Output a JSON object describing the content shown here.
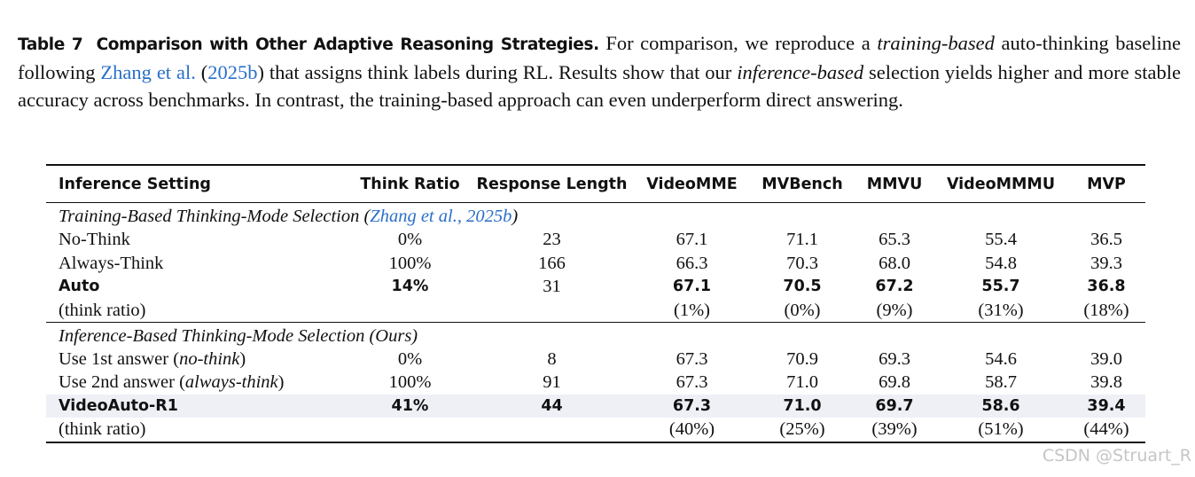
{
  "caption": {
    "label": "Table 7",
    "title": "Comparison with Other Adaptive Reasoning Strategies.",
    "parts": [
      "For comparison, we reproduce a ",
      "training-based",
      " auto-thinking baseline following ",
      "Zhang et al.",
      " (",
      "2025b",
      ") that assigns think labels during RL. Results show that our ",
      "inference-based",
      " selection yields higher and more stable accuracy across benchmarks. In contrast, the training-based approach can even underperform direct answering."
    ]
  },
  "table": {
    "headers": [
      "Inference Setting",
      "Think Ratio",
      "Response Length",
      "VideoMME",
      "MVBench",
      "MMVU",
      "VideoMMMU",
      "MVP"
    ],
    "sections": [
      {
        "title": [
          "Training-Based Thinking-Mode Selection (",
          "Zhang et al., 2025b",
          ")"
        ],
        "rows": [
          [
            "No-Think",
            "0%",
            "23",
            "67.1",
            "71.1",
            "65.3",
            "55.4",
            "36.5"
          ],
          [
            "Always-Think",
            "100%",
            "166",
            "66.3",
            "70.3",
            "68.0",
            "54.8",
            "39.3"
          ],
          [
            "Auto",
            "14%",
            "31",
            "67.1",
            "70.5",
            "67.2",
            "55.7",
            "36.8"
          ],
          [
            "(think ratio)",
            null,
            null,
            "(1%)",
            "(0%)",
            "(9%)",
            "(31%)",
            "(18%)"
          ]
        ]
      },
      {
        "title": [
          "Inference-Based Thinking-Mode Selection (Ours)"
        ],
        "rows": [
          [
            [
              "Use 1st answer (",
              "no-think",
              ")"
            ],
            "0%",
            "8",
            "67.3",
            "70.9",
            "69.3",
            "54.6",
            "39.0"
          ],
          [
            [
              "Use 2nd answer (",
              "always-think",
              ")"
            ],
            "100%",
            "91",
            "67.3",
            "71.0",
            "69.8",
            "58.7",
            "39.8"
          ],
          [
            "VideoAuto-R1",
            "41%",
            "44",
            "67.3",
            "71.0",
            "69.7",
            "58.6",
            "39.4"
          ],
          [
            "(think ratio)",
            null,
            null,
            "(40%)",
            "(25%)",
            "(39%)",
            "(51%)",
            "(44%)"
          ]
        ]
      }
    ]
  },
  "watermark": "CSDN @Struart_R"
}
